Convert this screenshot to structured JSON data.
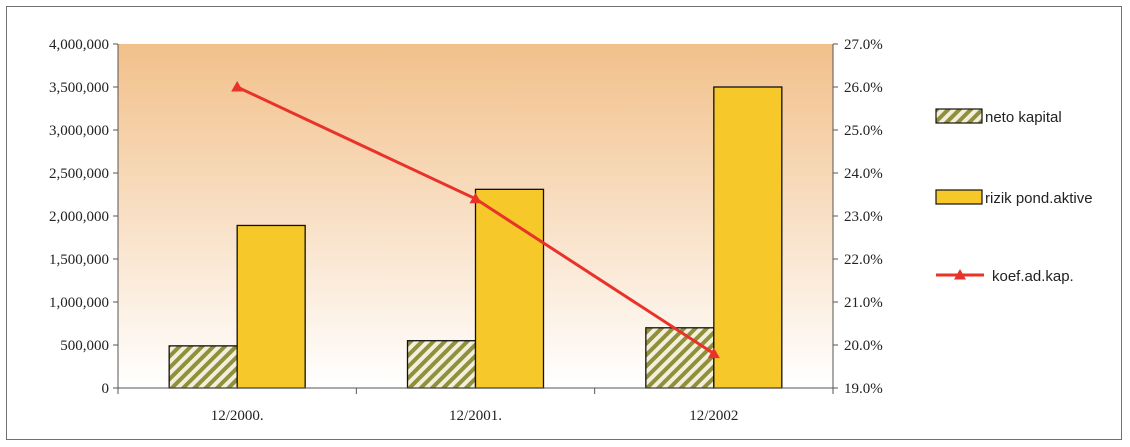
{
  "chart_data": {
    "type": "bar",
    "title": "",
    "xlabel": "",
    "ylabel": "",
    "categories": [
      "12/2000.",
      "12/2001.",
      "12/2002"
    ],
    "series": [
      {
        "name": "neto kapital",
        "type": "bar",
        "axis": "left",
        "values": [
          490000,
          550000,
          700000
        ]
      },
      {
        "name": "rizik pond.aktive",
        "type": "bar",
        "axis": "left",
        "values": [
          1890000,
          2310000,
          3500000
        ]
      },
      {
        "name": "koef.ad.kap.",
        "type": "line",
        "axis": "right",
        "values": [
          26.0,
          23.4,
          19.8
        ]
      }
    ],
    "ylim": [
      0,
      4000000
    ],
    "y2lim": [
      19.0,
      27.0
    ],
    "yticks": [
      "0",
      "500,000",
      "1,000,000",
      "1,500,000",
      "2,000,000",
      "2,500,000",
      "3,000,000",
      "3,500,000",
      "4,000,000"
    ],
    "y2ticks": [
      "19.0%",
      "20.0%",
      "21.0%",
      "22.0%",
      "23.0%",
      "24.0%",
      "25.0%",
      "26.0%",
      "27.0%"
    ],
    "grid": false,
    "legend": "right",
    "colors": {
      "neto_kapital_stripe": "#8f8f3c",
      "neto_kapital_bg": "#f2f0dc",
      "rizik": "#f7c82a",
      "line": "#e8322a",
      "plot_bg_top": "#f2c08a",
      "plot_bg_bottom": "#ffffff"
    }
  }
}
